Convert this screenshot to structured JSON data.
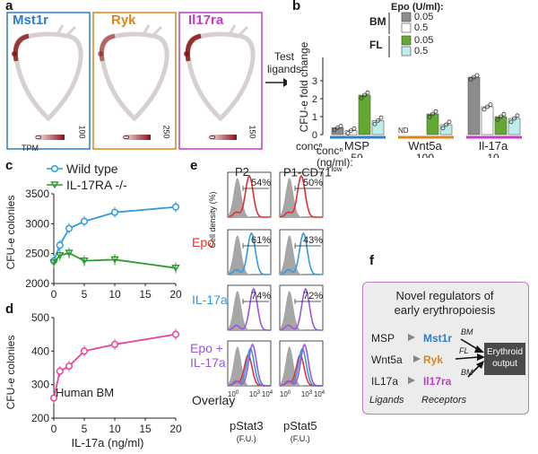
{
  "panel_labels": {
    "a": "a",
    "b": "b",
    "c": "c",
    "d": "d",
    "e": "e",
    "f": "f"
  },
  "panel_a": {
    "maps": [
      {
        "gene": "Mst1r",
        "color": "#2f7fc8",
        "scale_max": "100",
        "scale_min": "0",
        "scale_unit": "TPM"
      },
      {
        "gene": "Ryk",
        "color": "#d9861e",
        "scale_max": "250",
        "scale_min": "0",
        "scale_unit": ""
      },
      {
        "gene": "Il17ra",
        "color": "#c23dcc",
        "scale_max": "150",
        "scale_min": "0",
        "scale_unit": ""
      }
    ],
    "arrow_label": [
      "Test",
      "ligands"
    ]
  },
  "chart_data": [
    {
      "panel": "b",
      "type": "bar",
      "ylabel": "CFU-e fold change",
      "ylim": [
        0,
        4
      ],
      "yticks": [
        0,
        1,
        2,
        3
      ],
      "legend_title": "Epo (U/ml):",
      "legend_groups": [
        {
          "name": "BM",
          "entries": [
            {
              "label": "0.05",
              "color": "#8c8c8c"
            },
            {
              "label": "0.5",
              "color": "#ffffff"
            }
          ]
        },
        {
          "name": "FL",
          "entries": [
            {
              "label": "0.05",
              "color": "#63a830"
            },
            {
              "label": "0.5",
              "color": "#bdeeee"
            }
          ]
        }
      ],
      "categories": [
        "MSP",
        "Wnt5a",
        "Il-17a"
      ],
      "category_colors": [
        "#2f7fc8",
        "#d9861e",
        "#c23dcc"
      ],
      "conc_label": "concⁿ",
      "conc_unit": "(ng/ml):",
      "concentrations": [
        "50",
        "100",
        "10"
      ],
      "nd_label": "ND",
      "series": [
        {
          "name": "BM 0.05",
          "values": [
            0.38,
            null,
            3.2
          ]
        },
        {
          "name": "BM 0.5",
          "values": [
            0.22,
            null,
            1.55
          ]
        },
        {
          "name": "FL 0.05",
          "values": [
            2.2,
            1.15,
            1.0
          ]
        },
        {
          "name": "FL 0.5",
          "values": [
            0.78,
            0.55,
            0.9
          ]
        }
      ]
    },
    {
      "panel": "c",
      "type": "line",
      "ylabel": "CFU-e colonies",
      "xlim": [
        0,
        20
      ],
      "ylim": [
        2000,
        3500
      ],
      "yticks": [
        2000,
        2500,
        3000,
        3500
      ],
      "xticks": [
        0,
        5,
        10,
        15,
        20
      ],
      "series": [
        {
          "name": "Wild type",
          "color": "#2f9be0",
          "x": [
            0,
            1,
            2.5,
            5,
            10,
            20
          ],
          "y": [
            2380,
            2640,
            2920,
            3040,
            3190,
            3280
          ]
        },
        {
          "name": "IL-17RA -/-",
          "color": "#2e9a2e",
          "x": [
            0,
            1,
            2.5,
            5,
            10,
            20
          ],
          "y": [
            2350,
            2470,
            2510,
            2380,
            2400,
            2260
          ]
        }
      ]
    },
    {
      "panel": "d",
      "type": "line",
      "ylabel": "CFU-e colonies",
      "xlabel": "IL-17a (ng/ml)",
      "annotation": "Human BM",
      "xlim": [
        0,
        20
      ],
      "ylim": [
        200,
        500
      ],
      "yticks": [
        200,
        300,
        400,
        500
      ],
      "xticks": [
        0,
        5,
        10,
        15,
        20
      ],
      "series": [
        {
          "name": "Human BM",
          "color": "#e8449a",
          "x": [
            0,
            1,
            2.5,
            5,
            10,
            20
          ],
          "y": [
            260,
            340,
            355,
            400,
            420,
            450
          ]
        }
      ]
    }
  ],
  "panel_e": {
    "columns": [
      "P2",
      "P1-CD71"
    ],
    "column_superscript": "low",
    "ylabel": "Cell density (%)",
    "rows": [
      {
        "label": "Epo",
        "color": "#e33030",
        "pct": [
          "54%",
          "50%"
        ]
      },
      {
        "label": "IL-17a",
        "color": "#2f9be0",
        "pct": [
          "61%",
          "43%"
        ]
      },
      {
        "label": "Epo +\nIL-17a",
        "color": "#9a55e0",
        "pct": [
          "74%",
          "72%"
        ]
      },
      {
        "label": "Overlay",
        "color": "#222222",
        "pct": [
          "",
          ""
        ]
      }
    ],
    "tick_labels": [
      "10",
      "10",
      "10"
    ],
    "tick_exps": [
      "0",
      "3",
      "4"
    ],
    "xlabels": [
      "pStat3",
      "pStat5"
    ],
    "xunits": [
      "(F.U.)",
      "(F.U.)"
    ]
  },
  "panel_f": {
    "title": [
      "Novel regulators of",
      "early erythropoiesis"
    ],
    "ligands": [
      "MSP",
      "Wnt5a",
      "IL17a"
    ],
    "receptors": [
      {
        "name": "Mst1r",
        "color": "#2f7fc8"
      },
      {
        "name": "Ryk",
        "color": "#d9861e"
      },
      {
        "name": "Il17ra",
        "color": "#c23dcc"
      }
    ],
    "arrow_labels": [
      "BM",
      "FL",
      "BM"
    ],
    "output": [
      "Erythroid",
      "output"
    ],
    "footer": [
      "Ligands",
      "Receptors"
    ]
  }
}
